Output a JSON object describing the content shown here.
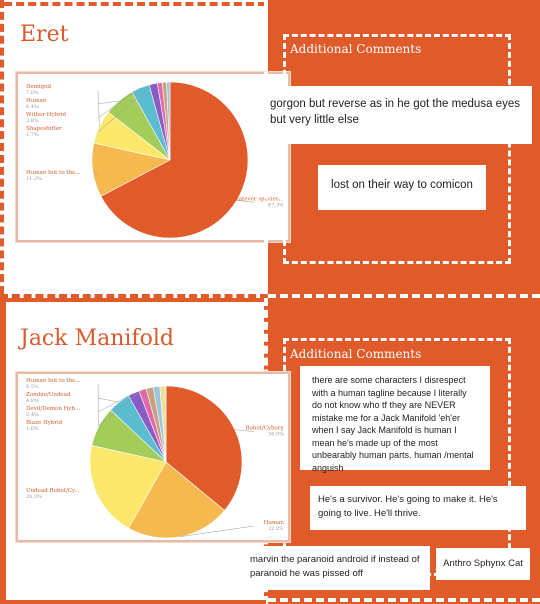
{
  "sections": [
    {
      "title": "Eret",
      "comments_title": "Additional Comments",
      "notes": [
        "gorgon but reverse as in he got the medusa eyes but very little else",
        "lost on their way to comicon"
      ]
    },
    {
      "title": "Jack Manifold",
      "comments_title": "Additional Comments",
      "notes": [
        "there are some characters I disrespect with a human tagline because I literally do not know who tf they are NEVER mistake me for a Jack Manifold 'eh'er when I say Jack Manifold is human I mean he's made up of the most unbearably human parts. human /mental anguish",
        "He's a survivor. He's going to make it. He's going to live. He'll thrive.",
        "marvin the paranoid android if instead of paranoid he was pissed off",
        "Anthro Sphynx Cat"
      ]
    }
  ],
  "chart_data": [
    {
      "type": "pie",
      "slices": [
        {
          "label": "Whatever species...",
          "pct_label": "67.3%",
          "value": 67.3,
          "color": "#e05a2a"
        },
        {
          "label": "Human but to the...",
          "pct_label": "11.2%",
          "value": 11.2,
          "color": "#f5b94f"
        },
        {
          "label": "Demigod",
          "pct_label": "7.0%",
          "value": 7.0,
          "color": "#fbe769"
        },
        {
          "label": "Human",
          "pct_label": "6.4%",
          "value": 6.4,
          "color": "#a3cc5a"
        },
        {
          "label": "Wither Hybrid",
          "pct_label": "3.8%",
          "value": 3.8,
          "color": "#5bbcd1"
        },
        {
          "label": "Shapeshifter",
          "pct_label": "1.7%",
          "value": 1.7,
          "color": "#8a5bc4"
        },
        {
          "label": "",
          "pct_label": "",
          "value": 1.0,
          "color": "#e06aa8"
        },
        {
          "label": "",
          "pct_label": "",
          "value": 0.9,
          "color": "#c6a37a"
        },
        {
          "label": "",
          "pct_label": "",
          "value": 0.7,
          "color": "#9ec3dd"
        }
      ]
    },
    {
      "type": "pie",
      "slices": [
        {
          "label": "Robot/Cyborg",
          "pct_label": "36.0%",
          "value": 36.0,
          "color": "#e05a2a"
        },
        {
          "label": "Human",
          "pct_label": "22.2%",
          "value": 22.2,
          "color": "#f5b94f"
        },
        {
          "label": "Undead Robot/Cy...",
          "pct_label": "20.3%",
          "value": 20.3,
          "color": "#fbe769"
        },
        {
          "label": "Human but to the...",
          "pct_label": "8.5%",
          "value": 8.5,
          "color": "#a3cc5a"
        },
        {
          "label": "Zombie/Undead",
          "pct_label": "4.8%",
          "value": 4.8,
          "color": "#5bbcd1"
        },
        {
          "label": "Devil/Demon Hyb...",
          "pct_label": "2.4%",
          "value": 2.4,
          "color": "#8a5bc4"
        },
        {
          "label": "Blaze Hybrid",
          "pct_label": "1.6%",
          "value": 1.6,
          "color": "#e06aa8"
        },
        {
          "label": "",
          "pct_label": "",
          "value": 1.5,
          "color": "#c6a37a"
        },
        {
          "label": "",
          "pct_label": "",
          "value": 1.4,
          "color": "#9ec3dd"
        },
        {
          "label": "",
          "pct_label": "",
          "value": 1.3,
          "color": "#f0e0a0"
        }
      ]
    }
  ]
}
